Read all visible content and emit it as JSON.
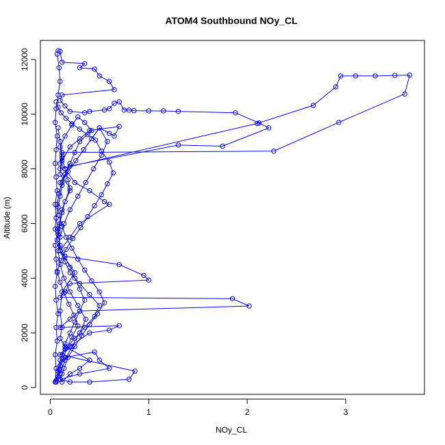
{
  "chart_data": {
    "type": "line",
    "title": "ATOM4 Southbound NOy_CL",
    "xlabel": "NOy_CL",
    "ylabel": "Altitude (m)",
    "xlim": [
      -0.1,
      3.8
    ],
    "ylim": [
      -250,
      12700
    ],
    "xticks": [
      0,
      1,
      2,
      3
    ],
    "xtick_labels": [
      "0",
      "1",
      "2",
      "3"
    ],
    "yticks": [
      0,
      2000,
      4000,
      6000,
      8000,
      10000,
      12000
    ],
    "ytick_labels": [
      "0",
      "2000",
      "4000",
      "6000",
      "8000",
      "10000",
      "12000"
    ],
    "grid": false,
    "legend": "none",
    "marker": "open-circle",
    "series": [
      {
        "color": "#0000ff",
        "x": [
          0.08,
          0.1,
          0.12,
          0.35,
          0.3,
          0.45,
          0.5,
          0.6,
          0.65,
          0.12,
          0.1,
          0.15,
          0.2,
          0.35,
          0.4,
          0.55,
          0.6,
          0.65,
          0.7,
          0.75,
          0.8,
          0.85,
          1.0,
          1.15,
          1.3,
          1.88,
          2.12,
          2.22,
          1.75,
          1.3,
          0.2,
          0.15,
          0.1,
          0.5,
          0.6,
          0.65,
          0.7,
          0.4,
          0.3,
          0.2,
          0.12,
          0.1,
          2.1,
          2.67,
          2.9,
          2.95,
          3.1,
          3.3,
          3.5,
          3.65,
          3.6,
          2.93,
          2.27,
          0.12,
          0.1,
          0.15,
          0.25,
          0.4,
          0.55,
          0.6,
          0.3,
          0.2,
          0.1,
          0.15,
          0.7,
          0.95,
          1.0,
          0.2,
          0.15,
          0.1,
          1.85,
          2.02,
          0.3,
          0.2,
          0.1,
          0.7,
          0.6,
          0.4,
          0.2,
          0.1,
          0.86,
          0.8,
          0.4,
          0.2,
          0.1,
          0.12,
          0.1,
          0.15,
          0.45,
          0.5,
          0.6,
          0.3,
          0.1,
          0.12,
          0.2,
          0.3,
          0.4,
          0.15,
          0.1,
          0.12,
          0.1,
          0.12,
          0.25,
          0.1,
          0.08,
          0.12,
          0.2,
          0.1,
          0.12,
          0.1,
          0.08
        ],
        "y": [
          12320,
          12300,
          11900,
          11850,
          11700,
          11650,
          11400,
          11200,
          10900,
          10700,
          10500,
          10300,
          10100,
          10050,
          10100,
          10150,
          10200,
          10400,
          10450,
          10150,
          10150,
          10130,
          10120,
          10120,
          10100,
          10050,
          9680,
          9500,
          8830,
          8870,
          8100,
          7800,
          7500,
          9500,
          9300,
          9200,
          9550,
          9400,
          9100,
          8800,
          8300,
          8000,
          9660,
          10320,
          11000,
          11400,
          11400,
          11400,
          11420,
          11430,
          10740,
          9700,
          8650,
          8600,
          8200,
          8000,
          7500,
          7200,
          6800,
          6700,
          6000,
          5500,
          5000,
          4800,
          4500,
          4100,
          3930,
          3800,
          3500,
          3300,
          3250,
          2980,
          2800,
          2500,
          2200,
          2260,
          2100,
          2000,
          1500,
          1200,
          600,
          300,
          200,
          200,
          300,
          500,
          800,
          1100,
          1300,
          1000,
          700,
          500,
          300,
          200,
          500,
          700,
          1000,
          1500,
          1800,
          2200,
          2800,
          3500,
          4200,
          5000,
          5800,
          6500,
          7300,
          7800,
          8500,
          9000,
          9500
        ]
      },
      {
        "color": "#0000ff",
        "x": [
          0.05,
          0.08,
          0.1,
          0.12,
          0.15,
          0.2,
          0.25,
          0.3,
          0.35,
          0.3,
          0.25,
          0.2,
          0.15,
          0.1,
          0.08,
          0.1,
          0.12,
          0.15,
          0.2,
          0.18,
          0.15,
          0.12,
          0.1,
          0.15,
          0.22,
          0.28,
          0.35,
          0.42,
          0.3,
          0.25,
          0.2,
          0.15,
          0.12,
          0.1,
          0.08,
          0.06,
          0.05,
          0.07,
          0.1,
          0.15,
          0.2,
          0.3,
          0.4,
          0.5,
          0.45,
          0.35,
          0.25,
          0.15,
          0.1,
          0.08,
          0.06
        ],
        "y": [
          200,
          400,
          800,
          1200,
          1600,
          2000,
          2400,
          2800,
          3200,
          3600,
          4000,
          4400,
          4800,
          5200,
          5600,
          6000,
          6400,
          6800,
          7200,
          7600,
          8000,
          8400,
          8800,
          9200,
          9600,
          9900,
          9700,
          9400,
          9000,
          8600,
          8200,
          7800,
          7400,
          7000,
          6600,
          6200,
          5800,
          5400,
          5000,
          4600,
          4200,
          3800,
          3400,
          3000,
          2600,
          2200,
          1800,
          1400,
          1000,
          600,
          200
        ]
      },
      {
        "color": "#0000ff",
        "x": [
          0.1,
          0.14,
          0.18,
          0.25,
          0.32,
          0.4,
          0.48,
          0.55,
          0.5,
          0.42,
          0.35,
          0.28,
          0.22,
          0.16,
          0.12,
          0.09,
          0.07,
          0.09,
          0.12,
          0.18,
          0.26,
          0.34,
          0.42,
          0.5,
          0.58,
          0.52,
          0.44,
          0.36,
          0.28,
          0.2,
          0.14,
          0.1,
          0.08,
          0.1,
          0.14,
          0.2,
          0.28,
          0.36,
          0.3,
          0.22,
          0.15,
          0.1
        ],
        "y": [
          300,
          700,
          1100,
          1500,
          1900,
          2300,
          2700,
          3100,
          3500,
          3900,
          4300,
          4700,
          5100,
          5500,
          5900,
          6300,
          6700,
          7100,
          7500,
          7900,
          8300,
          8700,
          9100,
          9500,
          9000,
          8500,
          8000,
          7500,
          7000,
          6500,
          6000,
          5500,
          5000,
          4500,
          4000,
          3500,
          3000,
          2500,
          2000,
          1500,
          1000,
          500
        ]
      },
      {
        "color": "#0000ff",
        "x": [
          0.06,
          0.09,
          0.13,
          0.17,
          0.22,
          0.28,
          0.24,
          0.19,
          0.14,
          0.1,
          0.07,
          0.11,
          0.16,
          0.23,
          0.31,
          0.38,
          0.45,
          0.52,
          0.58,
          0.64,
          0.6,
          0.52,
          0.46,
          0.38,
          0.3,
          0.22,
          0.16,
          0.11,
          0.08,
          0.06
        ],
        "y": [
          250,
          650,
          1050,
          1450,
          1850,
          2250,
          2650,
          3050,
          3450,
          3850,
          4250,
          4650,
          5050,
          5450,
          5850,
          6250,
          6650,
          7050,
          7450,
          7850,
          8250,
          8650,
          9050,
          9250,
          9450,
          9650,
          9850,
          10050,
          10250,
          10450
        ]
      },
      {
        "color": "#0000ff",
        "x": [
          0.05,
          0.06,
          0.05,
          0.07,
          0.06,
          0.08,
          0.06,
          0.05,
          0.07,
          0.06,
          0.05,
          0.08,
          0.06,
          0.05,
          0.07,
          0.06,
          0.05,
          0.06,
          0.07,
          0.05,
          0.06,
          0.08,
          0.1,
          0.09,
          0.07
        ],
        "y": [
          200,
          700,
          1200,
          1700,
          2200,
          2700,
          3200,
          3700,
          4200,
          4700,
          5200,
          5700,
          6200,
          6700,
          7200,
          7700,
          8200,
          8700,
          9200,
          9700,
          10200,
          10700,
          11200,
          11700,
          12200
        ]
      }
    ]
  }
}
